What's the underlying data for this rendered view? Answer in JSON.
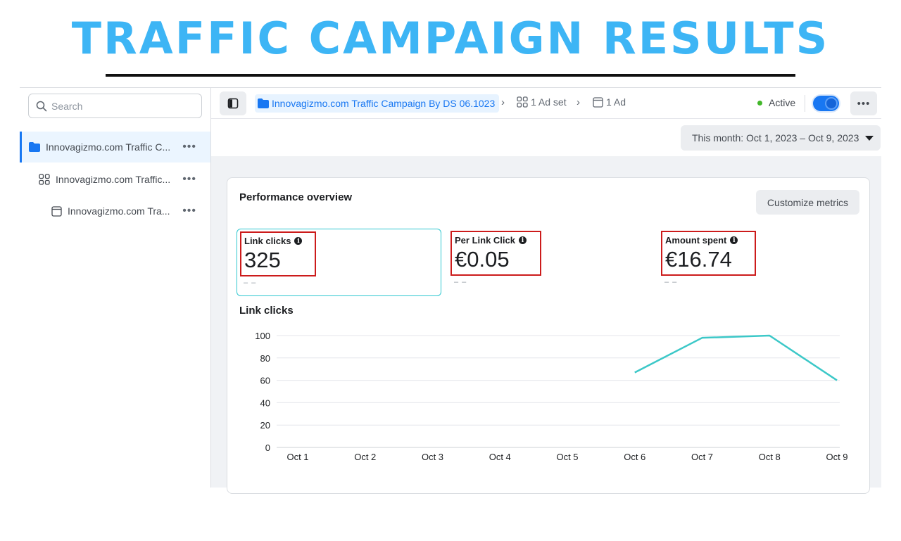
{
  "banner": {
    "title": "TRAFFIC CAMPAIGN RESULTS"
  },
  "sidebar": {
    "search_placeholder": "Search",
    "items": [
      {
        "label": "Innovagizmo.com Traffic C...",
        "icon": "folder-icon",
        "more": "•••"
      },
      {
        "label": "Innovagizmo.com Traffic...",
        "icon": "adset-grid-icon",
        "more": "•••"
      },
      {
        "label": "Innovagizmo.com Tra...",
        "icon": "ad-window-icon",
        "more": "•••"
      }
    ]
  },
  "header": {
    "breadcrumb_campaign": "Innovagizmo.com Traffic Campaign By DS 06.1023",
    "breadcrumb_adset": "1 Ad set",
    "breadcrumb_ad": "1 Ad",
    "status": "Active",
    "status_color": "#42b72a",
    "toggle_on": true,
    "more": "•••"
  },
  "date_range": "This month: Oct 1, 2023 – Oct 9, 2023",
  "performance": {
    "title": "Performance overview",
    "customize_label": "Customize metrics",
    "metrics": [
      {
        "label": "Link clicks",
        "value": "325",
        "compare": "– –"
      },
      {
        "label": "Per Link Click",
        "value": "€0.05",
        "compare": "– –"
      },
      {
        "label": "Amount spent",
        "value": "€16.74",
        "compare": "– –"
      }
    ]
  },
  "chart_data": {
    "type": "line",
    "title": "Link clicks",
    "categories": [
      "Oct 1",
      "Oct 2",
      "Oct 3",
      "Oct 4",
      "Oct 5",
      "Oct 6",
      "Oct 7",
      "Oct 8",
      "Oct 9"
    ],
    "series": [
      {
        "values": [
          null,
          null,
          null,
          null,
          null,
          67,
          98,
          100,
          60
        ]
      }
    ],
    "yticks": [
      0,
      20,
      40,
      60,
      80,
      100
    ],
    "ylim": [
      0,
      100
    ],
    "grid": true,
    "color": "#3cc8c8"
  }
}
